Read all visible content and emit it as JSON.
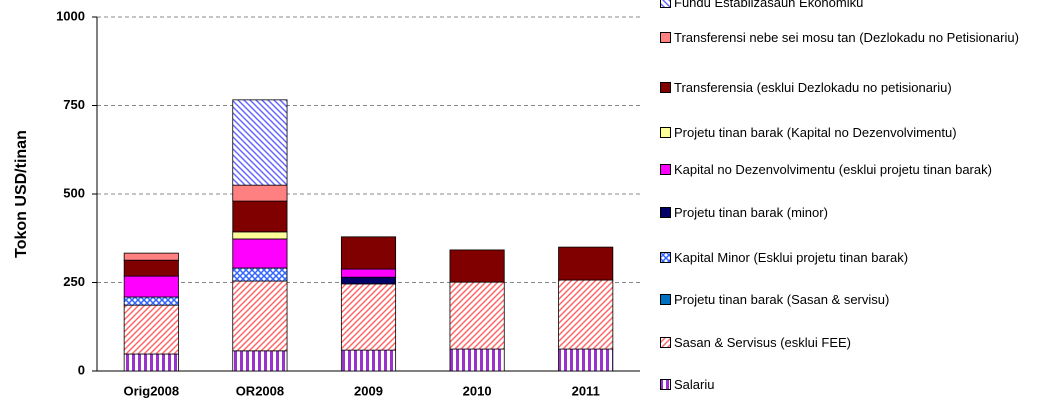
{
  "chart_data": {
    "type": "stacked_bar",
    "y_label": "Tokon USD/tinan",
    "categories": [
      "Orig2008",
      "OR2008",
      "2009",
      "2010",
      "2011"
    ],
    "ylim": [
      0,
      1000
    ],
    "yticks": [
      0,
      250,
      500,
      750,
      1000
    ],
    "grid": true,
    "series": [
      {
        "name": "Salariu",
        "color": "#9933cc",
        "pattern": "vstripe",
        "values": [
          48,
          57,
          59,
          62,
          62
        ]
      },
      {
        "name": "Sasan & Servisus (esklui FEE)",
        "color": "#ff6666",
        "pattern": "diag",
        "values": [
          138,
          197,
          187,
          189,
          195
        ]
      },
      {
        "name": "Projetu tinan barak (Sasan & servisu)",
        "color": "#0070c0",
        "pattern": "solid",
        "values": [
          0,
          0,
          0,
          0,
          0
        ]
      },
      {
        "name": "Kapital Minor (Esklui projetu tinan barak)",
        "color": "#3366ff",
        "pattern": "cross",
        "values": [
          23,
          37,
          0,
          0,
          0
        ]
      },
      {
        "name": "Projetu tinan barak  (minor)",
        "color": "#000066",
        "pattern": "solid",
        "values": [
          0,
          0,
          19,
          0,
          0
        ]
      },
      {
        "name": "Kapital no Dezenvolvimentu (esklui projetu tinan barak)",
        "color": "#ff00ff",
        "pattern": "solid",
        "values": [
          59,
          82,
          23,
          0,
          0
        ]
      },
      {
        "name": "Projetu tinan barak (Kapital no Dezenvolvimentu)",
        "color": "#ffff99",
        "pattern": "solid",
        "values": [
          0,
          20,
          0,
          0,
          0
        ]
      },
      {
        "name": "Transferensia (esklui Dezlokadu no petisionariu)",
        "color": "#800000",
        "pattern": "solid",
        "values": [
          45,
          87,
          91,
          91,
          93
        ]
      },
      {
        "name": "Transferensi nebe sei mosu tan (Dezlokadu no Petisionariu)",
        "color": "#ff8080",
        "pattern": "solid",
        "values": [
          20,
          45,
          0,
          0,
          0
        ]
      },
      {
        "name": "Fundu Establizasaun Ekonomiku",
        "color": "#6666ff",
        "pattern": "bdiag",
        "values": [
          0,
          241,
          0,
          0,
          0
        ]
      }
    ]
  }
}
